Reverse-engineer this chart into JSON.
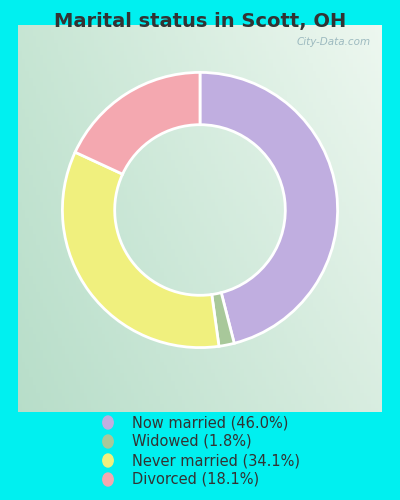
{
  "title": "Marital status in Scott, OH",
  "slices": [
    46.0,
    1.8,
    34.1,
    18.1
  ],
  "labels": [
    "Now married (46.0%)",
    "Widowed (1.8%)",
    "Never married (34.1%)",
    "Divorced (18.1%)"
  ],
  "colors": [
    "#c0aee0",
    "#a8c89a",
    "#f0f07e",
    "#f4a8b0"
  ],
  "startangle": 90,
  "outer_bg": "#00f0f0",
  "inner_bg_top_right": "#e8f5f0",
  "inner_bg_bottom_left": "#b8ddc8",
  "title_color": "#333333",
  "title_fontsize": 14,
  "legend_fontsize": 10.5,
  "watermark": "City-Data.com",
  "donut_width": 0.38,
  "edge_color": "white",
  "edge_linewidth": 2.0
}
